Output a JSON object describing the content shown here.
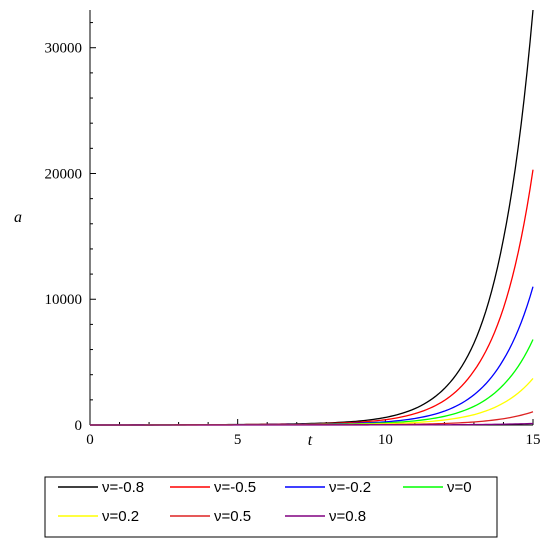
{
  "chart_data": {
    "type": "line",
    "xlabel": "t",
    "ylabel": "a",
    "xlim": [
      0,
      15
    ],
    "ylim": [
      0,
      33000
    ],
    "xticks": [
      0,
      5,
      10,
      15
    ],
    "yticks": [
      0,
      10000,
      20000,
      30000
    ],
    "ytick_labels": [
      "0",
      "10000",
      "20000",
      "30000"
    ],
    "xtick_labels": [
      "0",
      "5",
      "10",
      "15"
    ],
    "grid": false,
    "legend_position": "bottom",
    "x": [
      0,
      1,
      2,
      3,
      4,
      5,
      6,
      7,
      8,
      9,
      10,
      11,
      12,
      13,
      14,
      15
    ],
    "series": [
      {
        "name": "ν=-0.8",
        "color": "#000000",
        "values": [
          1,
          2,
          6,
          14,
          24,
          38,
          60,
          95,
          160,
          290,
          600,
          1300,
          2900,
          6500,
          14800,
          33000
        ]
      },
      {
        "name": "ν=-0.5",
        "color": "#ff0000",
        "values": [
          1,
          2,
          5,
          11,
          19,
          30,
          45,
          72,
          120,
          210,
          420,
          900,
          1950,
          4300,
          9300,
          20300
        ]
      },
      {
        "name": "ν=-0.2",
        "color": "#0000ff",
        "values": [
          1,
          2,
          4,
          8,
          14,
          22,
          33,
          50,
          80,
          135,
          250,
          520,
          1100,
          2400,
          5200,
          11000
        ]
      },
      {
        "name": "ν=0",
        "color": "#00ff00",
        "values": [
          1,
          2,
          3,
          6,
          10,
          16,
          24,
          36,
          56,
          92,
          165,
          330,
          690,
          1480,
          3200,
          6800
        ]
      },
      {
        "name": "ν=0.2",
        "color": "#ffff00",
        "values": [
          1,
          2,
          3,
          5,
          8,
          12,
          17,
          25,
          37,
          58,
          100,
          195,
          400,
          820,
          1750,
          3700
        ]
      },
      {
        "name": "ν=0.5",
        "color": "#dd2222",
        "values": [
          1,
          1,
          2,
          3,
          5,
          7,
          9,
          12,
          16,
          23,
          35,
          62,
          120,
          240,
          500,
          1050
        ]
      },
      {
        "name": "ν=0.8",
        "color": "#800080",
        "values": [
          1,
          1,
          1,
          2,
          2,
          3,
          3,
          4,
          5,
          6,
          8,
          12,
          20,
          35,
          65,
          120
        ]
      }
    ]
  }
}
